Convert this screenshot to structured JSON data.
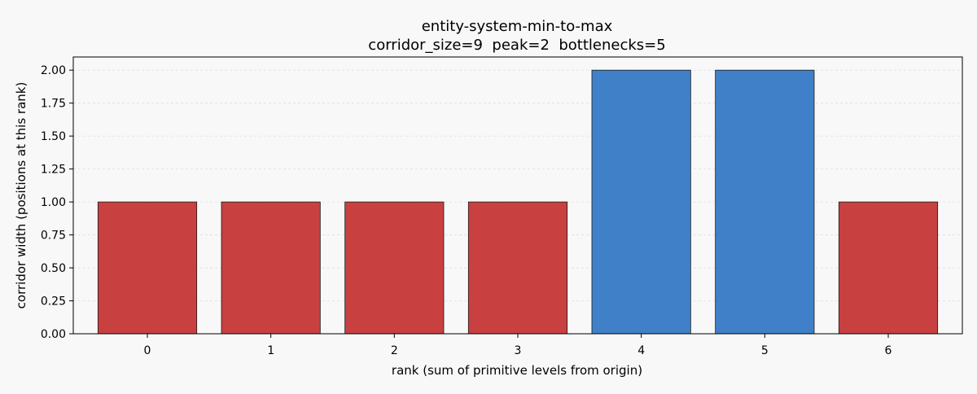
{
  "chart_data": {
    "type": "bar",
    "title": "entity-system-min-to-max",
    "subtitle": "corridor_size=9  peak=2  bottlenecks=5",
    "xlabel": "rank (sum of primitive levels from origin)",
    "ylabel": "corridor width (positions at this rank)",
    "categories": [
      "0",
      "1",
      "2",
      "3",
      "4",
      "5",
      "6"
    ],
    "values": [
      1,
      1,
      1,
      1,
      2,
      2,
      1
    ],
    "bottleneck": [
      true,
      true,
      true,
      true,
      false,
      false,
      true
    ],
    "ylim": [
      0,
      2.1
    ],
    "yticks": [
      0,
      0.25,
      0.5,
      0.75,
      1,
      1.25,
      1.5,
      1.75,
      2
    ],
    "ytick_labels": [
      "0.00",
      "0.25",
      "0.50",
      "0.75",
      "1.00",
      "1.25",
      "1.50",
      "1.75",
      "2.00"
    ],
    "grid": true,
    "colors": {
      "bottleneck": "#c84040",
      "normal": "#3f80c8",
      "edge": "#1a1a1a",
      "grid": "#dddddd",
      "background": "#f8f8f8"
    }
  }
}
